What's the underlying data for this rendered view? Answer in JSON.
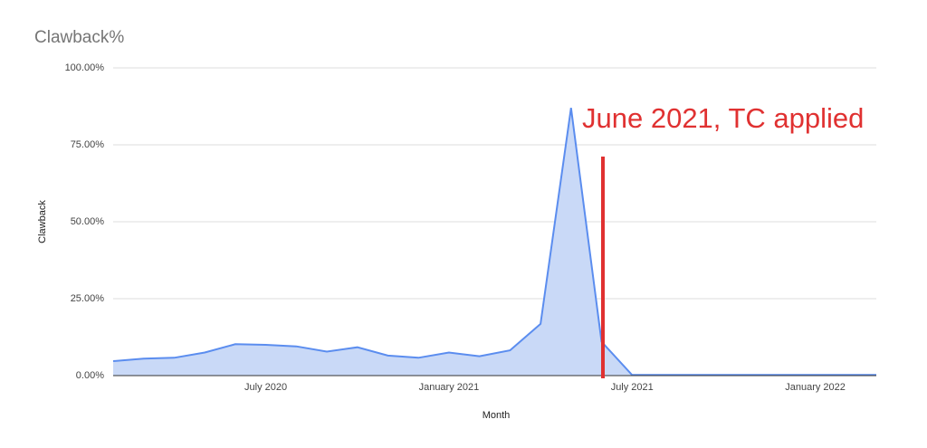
{
  "chart_data": {
    "type": "area",
    "title": "Clawback%",
    "x_label": "Month",
    "y_label": "Clawback",
    "annotation": "June 2021, TC applied",
    "color": "#5b8def",
    "fill": "#c9d9f7",
    "annotation_color": "#e03131",
    "x": [
      "2020-02",
      "2020-03",
      "2020-04",
      "2020-05",
      "2020-06",
      "2020-07",
      "2020-08",
      "2020-09",
      "2020-10",
      "2020-11",
      "2020-12",
      "2021-01",
      "2021-02",
      "2021-03",
      "2021-04",
      "2021-05",
      "2021-06",
      "2021-07",
      "2021-08",
      "2021-09",
      "2021-10",
      "2021-11",
      "2021-12",
      "2022-01",
      "2022-02",
      "2022-03"
    ],
    "values": [
      4.7,
      5.5,
      5.8,
      7.5,
      10.2,
      10.0,
      9.5,
      7.8,
      9.2,
      6.5,
      5.8,
      7.5,
      6.3,
      8.2,
      16.8,
      87.0,
      11.0,
      0.2,
      0.2,
      0.2,
      0.2,
      0.2,
      0.2,
      0.2,
      0.2,
      0.2
    ],
    "xlim": [
      "2020-02",
      "2022-03"
    ],
    "xticks": [
      {
        "value": "2020-07",
        "label": "July 2020"
      },
      {
        "value": "2021-01",
        "label": "January 2021"
      },
      {
        "value": "2021-07",
        "label": "July 2021"
      },
      {
        "value": "2022-01",
        "label": "January 2022"
      }
    ],
    "ylim": [
      0,
      100
    ],
    "yticks": [
      {
        "value": 0,
        "label": "0.00%"
      },
      {
        "value": 25,
        "label": "25.00%"
      },
      {
        "value": 50,
        "label": "50.00%"
      },
      {
        "value": 75,
        "label": "75.00%"
      },
      {
        "value": 100,
        "label": "100.00%"
      }
    ],
    "grid": true
  }
}
